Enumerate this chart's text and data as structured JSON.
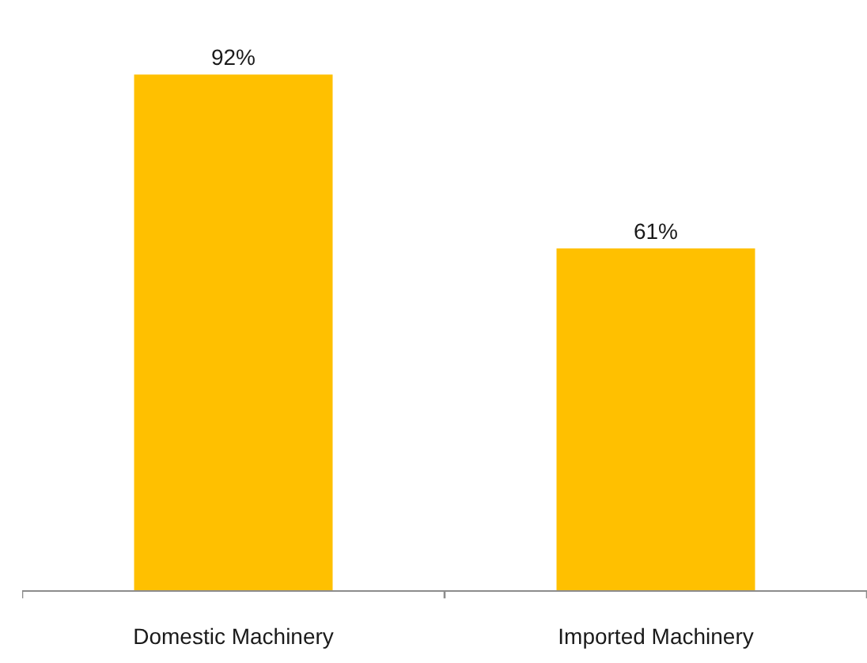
{
  "chart_data": {
    "type": "bar",
    "categories": [
      "Domestic Machinery",
      "Imported Machinery"
    ],
    "values": [
      92,
      61
    ],
    "value_labels": [
      "92%",
      "61%"
    ],
    "color": "#ffc000",
    "tick_labels": "x"
  }
}
